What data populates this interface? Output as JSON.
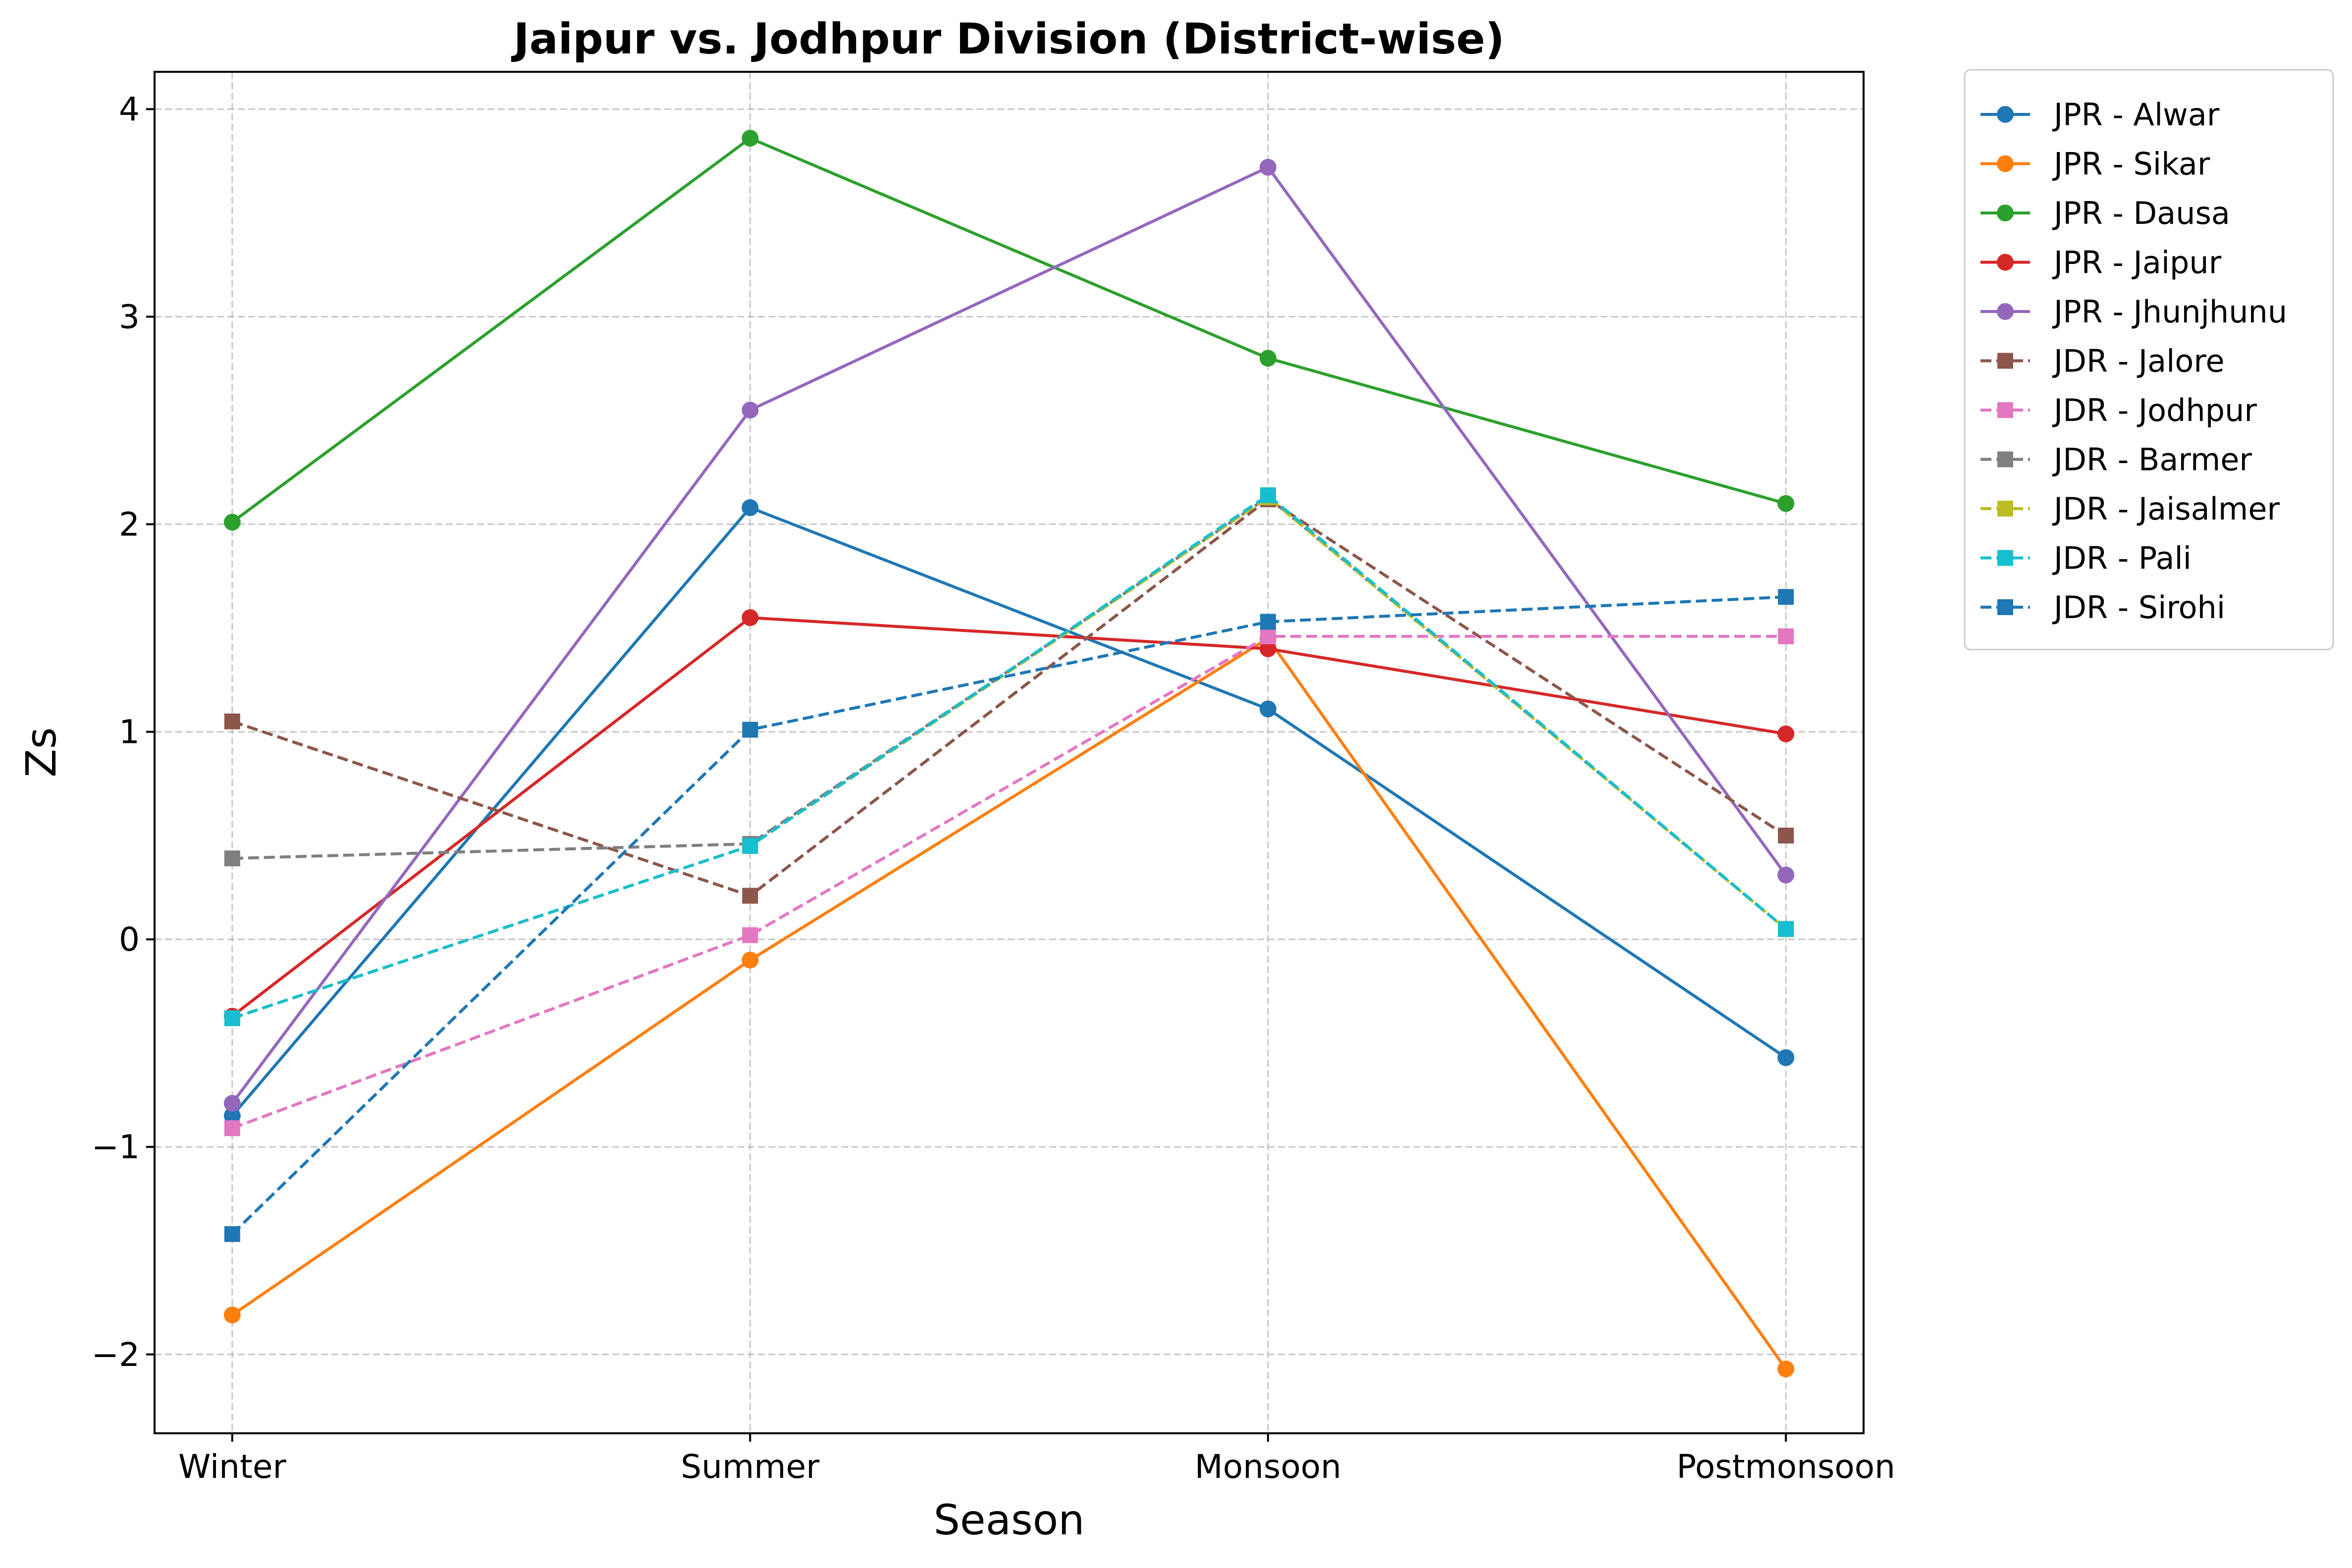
{
  "chart_data": {
    "type": "line",
    "title": "Jaipur vs. Jodhpur Division (District-wise)",
    "xlabel": "Season",
    "ylabel": "Zs",
    "categories": [
      "Winter",
      "Summer",
      "Monsoon",
      "Postmonsoon"
    ],
    "ylim": [
      -2.38,
      4.18
    ],
    "yticks": [
      -2,
      -1,
      0,
      1,
      2,
      3,
      4
    ],
    "ytick_labels": [
      "−2",
      "−1",
      "0",
      "1",
      "2",
      "3",
      "4"
    ],
    "grid": true,
    "legend_position": "outside-right-top",
    "series": [
      {
        "name": "JPR - Alwar",
        "values": [
          -0.85,
          2.08,
          1.11,
          -0.57
        ],
        "color": "#1f77b4",
        "marker": "circle",
        "linestyle": "solid"
      },
      {
        "name": "JPR - Sikar",
        "values": [
          -1.81,
          -0.1,
          1.45,
          -2.07
        ],
        "color": "#ff7f0e",
        "marker": "circle",
        "linestyle": "solid"
      },
      {
        "name": "JPR - Dausa",
        "values": [
          2.01,
          3.86,
          2.8,
          2.1
        ],
        "color": "#2ca02c",
        "marker": "circle",
        "linestyle": "solid"
      },
      {
        "name": "JPR - Jaipur",
        "values": [
          -0.37,
          1.55,
          1.4,
          0.99
        ],
        "color": "#d62728",
        "marker": "circle",
        "linestyle": "solid"
      },
      {
        "name": "JPR - Jhunjhunu",
        "values": [
          -0.79,
          2.55,
          3.72,
          0.31
        ],
        "color": "#9467bd",
        "marker": "circle",
        "linestyle": "solid"
      },
      {
        "name": "JDR - Jalore",
        "values": [
          1.05,
          0.21,
          2.12,
          0.5
        ],
        "color": "#8c564b",
        "marker": "square",
        "linestyle": "dashed"
      },
      {
        "name": "JDR - Jodhpur",
        "values": [
          -0.91,
          0.02,
          1.46,
          1.46
        ],
        "color": "#e377c2",
        "marker": "square",
        "linestyle": "dashed"
      },
      {
        "name": "JDR - Barmer",
        "values": [
          0.39,
          0.46,
          2.13,
          0.05
        ],
        "color": "#7f7f7f",
        "marker": "square",
        "linestyle": "dashed"
      },
      {
        "name": "JDR - Jaisalmer",
        "values": [
          -0.38,
          0.45,
          2.13,
          0.05
        ],
        "color": "#bcbd22",
        "marker": "square",
        "linestyle": "dashed"
      },
      {
        "name": "JDR - Pali",
        "values": [
          -0.38,
          0.45,
          2.14,
          0.05
        ],
        "color": "#17becf",
        "marker": "square",
        "linestyle": "dashed"
      },
      {
        "name": "JDR - Sirohi",
        "values": [
          -1.42,
          1.01,
          1.53,
          1.65
        ],
        "color": "#1f77b4",
        "marker": "square",
        "linestyle": "dashed"
      }
    ]
  }
}
